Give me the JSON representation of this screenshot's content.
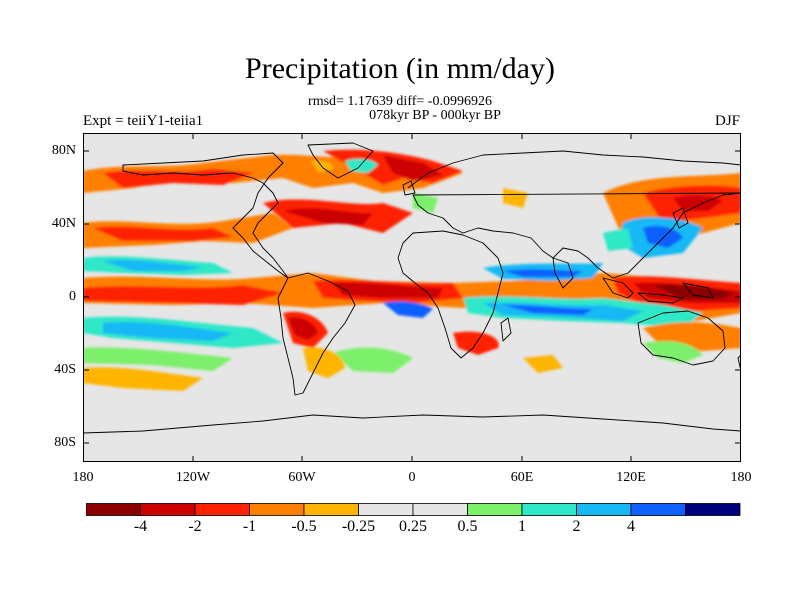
{
  "title": "Precipitation (in mm/day)",
  "stats_line1": "rmsd= 1.17639 diff= -0.0996926",
  "stats_line2": "078kyr BP - 000kyr BP",
  "left_label": "Expt = teiiY1-teiia1",
  "right_label": "DJF",
  "y_ticks": [
    "80N",
    "40N",
    "0",
    "40S",
    "80S"
  ],
  "x_ticks": [
    "180",
    "120W",
    "60W",
    "0",
    "60E",
    "120E",
    "180"
  ],
  "colorbar": {
    "colors": [
      "#8b0000",
      "#cc0000",
      "#ff2200",
      "#ff7f00",
      "#ffb400",
      "#e6e6e6",
      "#e6e6e6",
      "#7cf06a",
      "#2ee8c8",
      "#18b8f5",
      "#1060ff",
      "#00007f"
    ],
    "labels": [
      "-4",
      "-2",
      "-1",
      "-0.5",
      "-0.25",
      "0.25",
      "0.5",
      "1",
      "2",
      "4"
    ]
  },
  "colors": {
    "background_field": "#e6e6e6",
    "coastline": "#000000"
  }
}
